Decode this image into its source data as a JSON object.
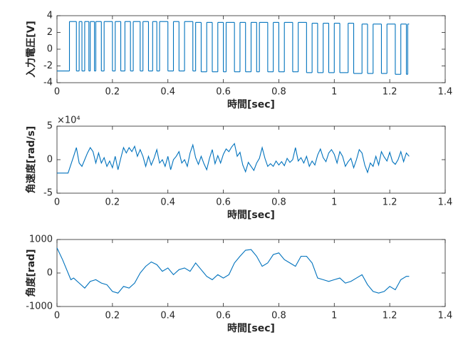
{
  "chart_data": [
    {
      "type": "step",
      "ylabel": "入力電圧[V]",
      "xlabel": "時間[sec]",
      "color": "#0072bd",
      "xlim": [
        0,
        1.4
      ],
      "xticks": [
        0,
        0.2,
        0.4,
        0.6,
        0.8,
        1,
        1.2,
        1.4
      ],
      "ylim": [
        -4,
        4
      ],
      "yticks": [
        -4,
        -2,
        0,
        2,
        4
      ],
      "x": [
        0,
        0.045,
        0.07,
        0.08,
        0.09,
        0.1,
        0.115,
        0.12,
        0.135,
        0.14,
        0.16,
        0.17,
        0.2,
        0.21,
        0.23,
        0.245,
        0.265,
        0.275,
        0.3,
        0.31,
        0.33,
        0.345,
        0.36,
        0.37,
        0.4,
        0.42,
        0.44,
        0.46,
        0.49,
        0.5,
        0.52,
        0.54,
        0.56,
        0.58,
        0.6,
        0.61,
        0.64,
        0.66,
        0.68,
        0.7,
        0.72,
        0.73,
        0.76,
        0.78,
        0.8,
        0.82,
        0.85,
        0.87,
        0.9,
        0.92,
        0.94,
        0.96,
        0.98,
        1.0,
        1.02,
        1.05,
        1.07,
        1.1,
        1.12,
        1.14,
        1.17,
        1.19,
        1.22,
        1.24,
        1.26,
        1.265,
        1.27
      ],
      "values": [
        -2.6,
        3.3,
        -2.6,
        3.3,
        -2.6,
        3.3,
        -2.6,
        3.3,
        -2.6,
        3.3,
        -2.6,
        3.3,
        -2.6,
        3.3,
        -2.6,
        3.3,
        -2.6,
        3.3,
        -2.6,
        3.3,
        -2.6,
        3.3,
        -2.6,
        3.3,
        -2.6,
        3.3,
        -2.6,
        3.3,
        -2.6,
        3.2,
        -2.7,
        3.2,
        -2.7,
        3.2,
        -2.7,
        3.2,
        -2.7,
        3.2,
        -2.7,
        3.2,
        -2.7,
        3.2,
        -2.7,
        3.2,
        -2.7,
        3.2,
        -2.7,
        3.2,
        -2.8,
        3.1,
        -2.8,
        3.1,
        -2.8,
        3.1,
        -2.8,
        3.1,
        -2.9,
        3.0,
        -2.9,
        3.0,
        -2.9,
        3.0,
        -3.0,
        3.0,
        -3.0,
        3.0,
        3.0
      ]
    },
    {
      "type": "line",
      "ylabel": "角速度[rad/s]",
      "xlabel": "時間[sec]",
      "y_exponent": "×10⁴",
      "color": "#0072bd",
      "xlim": [
        0,
        1.4
      ],
      "xticks": [
        0,
        0.2,
        0.4,
        0.6,
        0.8,
        1,
        1.2,
        1.4
      ],
      "ylim": [
        -5,
        5
      ],
      "yticks": [
        -5,
        0,
        5
      ],
      "x": [
        0,
        0.04,
        0.06,
        0.07,
        0.08,
        0.09,
        0.1,
        0.11,
        0.12,
        0.13,
        0.14,
        0.15,
        0.16,
        0.17,
        0.18,
        0.19,
        0.2,
        0.21,
        0.22,
        0.23,
        0.24,
        0.25,
        0.26,
        0.27,
        0.28,
        0.29,
        0.3,
        0.31,
        0.32,
        0.33,
        0.34,
        0.35,
        0.36,
        0.37,
        0.38,
        0.39,
        0.4,
        0.41,
        0.42,
        0.43,
        0.44,
        0.45,
        0.46,
        0.47,
        0.48,
        0.49,
        0.5,
        0.51,
        0.52,
        0.53,
        0.54,
        0.55,
        0.56,
        0.57,
        0.58,
        0.59,
        0.6,
        0.61,
        0.62,
        0.63,
        0.64,
        0.65,
        0.66,
        0.67,
        0.68,
        0.69,
        0.7,
        0.71,
        0.72,
        0.73,
        0.74,
        0.75,
        0.76,
        0.77,
        0.78,
        0.79,
        0.8,
        0.81,
        0.82,
        0.83,
        0.84,
        0.85,
        0.86,
        0.87,
        0.88,
        0.89,
        0.9,
        0.91,
        0.92,
        0.93,
        0.94,
        0.95,
        0.96,
        0.97,
        0.98,
        0.99,
        1.0,
        1.01,
        1.02,
        1.03,
        1.04,
        1.05,
        1.06,
        1.07,
        1.08,
        1.09,
        1.1,
        1.11,
        1.12,
        1.13,
        1.14,
        1.15,
        1.16,
        1.17,
        1.18,
        1.19,
        1.2,
        1.21,
        1.22,
        1.23,
        1.24,
        1.25,
        1.26,
        1.27
      ],
      "values": [
        -2,
        -2,
        0.5,
        1.8,
        -0.5,
        -1,
        0,
        1,
        1.8,
        1.2,
        -0.5,
        1,
        -0.5,
        0.3,
        -1,
        -0.2,
        -1.2,
        0.5,
        -1.5,
        0.2,
        1.8,
        1,
        1.8,
        1.2,
        2,
        0.5,
        1.5,
        0.5,
        -1,
        0.5,
        -0.8,
        0.2,
        1.5,
        -0.5,
        0,
        -1,
        0.5,
        -1.5,
        0,
        0.5,
        1.2,
        -0.5,
        0,
        -1,
        1,
        2.2,
        0.3,
        -0.7,
        0.5,
        -0.6,
        -1.5,
        0.2,
        1.5,
        -0.6,
        0.6,
        -0.5,
        0.8,
        1.6,
        1.2,
        1.9,
        2.4,
        0.5,
        1.1,
        -0.8,
        -1.8,
        -0.4,
        -1,
        -1.6,
        -0.5,
        0.2,
        1.8,
        0.2,
        -1,
        -0.6,
        -1,
        -0.2,
        -0.8,
        -0.3,
        -0.9,
        0.2,
        -0.4,
        0,
        1.8,
        -0.2,
        0.3,
        -0.5,
        0.5,
        -1,
        -0.2,
        -0.8,
        0.7,
        1.6,
        0.3,
        -0.3,
        1,
        1.5,
        0.8,
        -0.5,
        1.2,
        0.5,
        -1,
        -0.3,
        0.2,
        -1.2,
        0,
        1.5,
        1,
        -0.8,
        -1.9,
        -0.5,
        -1,
        0.5,
        -0.8,
        1.2,
        0.4,
        -0.2,
        1.1,
        -0.3,
        -0.7,
        0,
        1.2,
        -0.3,
        1,
        0.5
      ]
    },
    {
      "type": "line",
      "ylabel": "角度[rad]",
      "xlabel": "時間[sec]",
      "color": "#0072bd",
      "xlim": [
        0,
        1.4
      ],
      "xticks": [
        0,
        0.2,
        0.4,
        0.6,
        0.8,
        1,
        1.2,
        1.4
      ],
      "ylim": [
        -1000,
        1000
      ],
      "yticks": [
        -1000,
        0,
        1000
      ],
      "x": [
        0,
        0.02,
        0.04,
        0.05,
        0.06,
        0.08,
        0.1,
        0.12,
        0.14,
        0.16,
        0.18,
        0.2,
        0.22,
        0.24,
        0.26,
        0.28,
        0.3,
        0.32,
        0.34,
        0.36,
        0.38,
        0.4,
        0.42,
        0.44,
        0.46,
        0.48,
        0.5,
        0.52,
        0.54,
        0.56,
        0.58,
        0.6,
        0.62,
        0.64,
        0.66,
        0.68,
        0.7,
        0.72,
        0.74,
        0.76,
        0.78,
        0.8,
        0.82,
        0.84,
        0.86,
        0.88,
        0.9,
        0.92,
        0.94,
        0.96,
        0.98,
        1.0,
        1.02,
        1.04,
        1.06,
        1.08,
        1.1,
        1.12,
        1.14,
        1.16,
        1.18,
        1.2,
        1.22,
        1.24,
        1.26,
        1.27
      ],
      "values": [
        750,
        400,
        0,
        -200,
        -150,
        -300,
        -450,
        -250,
        -200,
        -300,
        -350,
        -550,
        -600,
        -400,
        -450,
        -300,
        0,
        200,
        330,
        250,
        50,
        150,
        -50,
        100,
        150,
        50,
        300,
        100,
        -100,
        -200,
        -50,
        -150,
        -50,
        300,
        500,
        680,
        700,
        500,
        200,
        300,
        550,
        600,
        400,
        300,
        200,
        500,
        500,
        300,
        -150,
        -200,
        -250,
        -200,
        -150,
        -300,
        -250,
        -150,
        -50,
        -350,
        -550,
        -600,
        -550,
        -400,
        -500,
        -200,
        -100,
        -100
      ]
    }
  ]
}
